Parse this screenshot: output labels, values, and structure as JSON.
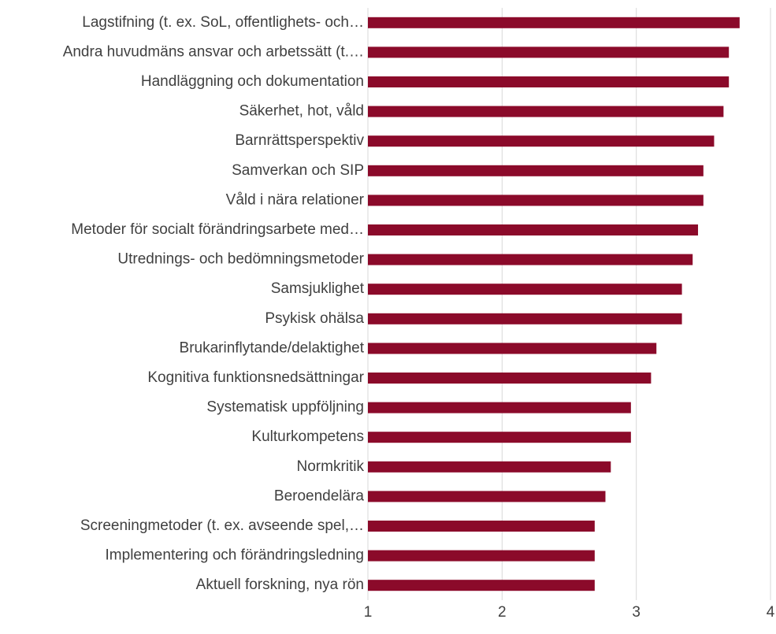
{
  "chart_data": {
    "type": "bar",
    "orientation": "horizontal",
    "categories": [
      "Lagstifning (t. ex. SoL, offentlighets- och…",
      "Andra huvudmäns ansvar och arbetssätt (t.…",
      "Handläggning och dokumentation",
      "Säkerhet, hot, våld",
      "Barnrättsperspektiv",
      "Samverkan och SIP",
      "Våld i nära relationer",
      "Metoder för socialt förändringsarbete med…",
      "Utrednings- och bedömningsmetoder",
      "Samsjuklighet",
      "Psykisk ohälsa",
      "Brukarinflytande/delaktighet",
      "Kognitiva funktionsnedsättningar",
      "Systematisk uppföljning",
      "Kulturkompetens",
      "Normkritik",
      "Beroendelära",
      "Screeningmetoder (t. ex. avseende spel,…",
      "Implementering och förändringsledning",
      "Aktuell forskning, nya rön"
    ],
    "values": [
      3.77,
      3.69,
      3.69,
      3.65,
      3.58,
      3.5,
      3.5,
      3.46,
      3.42,
      3.34,
      3.34,
      3.15,
      3.11,
      2.96,
      2.96,
      2.81,
      2.77,
      2.69,
      2.69,
      2.69
    ],
    "color": "#8b0a2a",
    "xlim": [
      1,
      4
    ],
    "xticks": [
      1,
      2,
      3,
      4
    ],
    "grid": true
  }
}
